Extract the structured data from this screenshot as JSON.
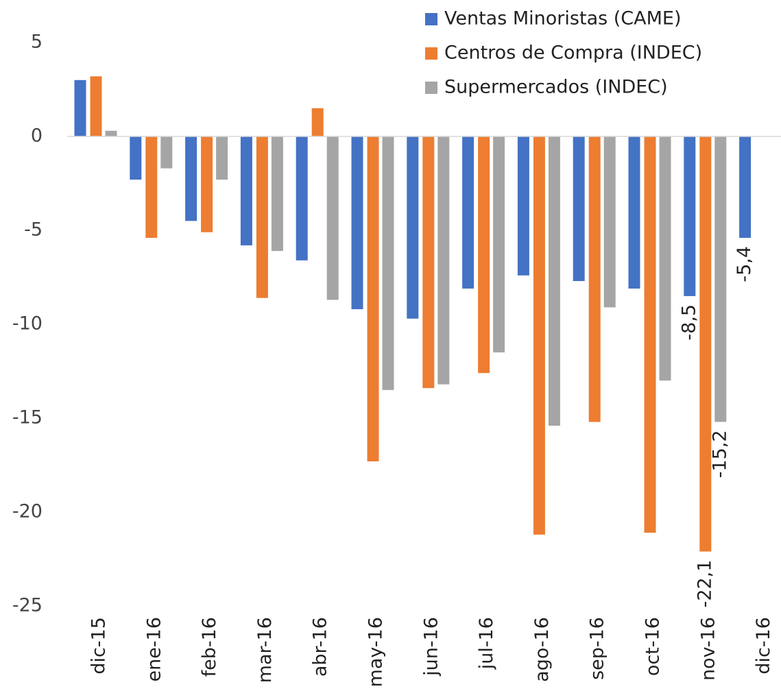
{
  "chart_data": {
    "type": "bar",
    "categories": [
      "dic-15",
      "ene-16",
      "feb-16",
      "mar-16",
      "abr-16",
      "may-16",
      "jun-16",
      "jul-16",
      "ago-16",
      "sep-16",
      "oct-16",
      "nov-16",
      "dic-16"
    ],
    "series": [
      {
        "name": "Ventas Minoristas (CAME)",
        "color": "#4472c4",
        "values": [
          3.0,
          -2.3,
          -4.5,
          -5.8,
          -6.6,
          -9.2,
          -9.7,
          -8.1,
          -7.4,
          -7.7,
          -8.1,
          -8.5,
          -5.4
        ],
        "value_labels": [
          null,
          null,
          null,
          null,
          null,
          null,
          null,
          null,
          null,
          null,
          null,
          "-8,5",
          "-5,4"
        ]
      },
      {
        "name": "Centros de Compra (INDEC)",
        "color": "#ed7d31",
        "values": [
          3.2,
          -5.4,
          -5.1,
          -8.6,
          1.5,
          -17.3,
          -13.4,
          -12.6,
          -21.2,
          -15.2,
          -21.1,
          -22.1,
          null
        ],
        "value_labels": [
          null,
          null,
          null,
          null,
          null,
          null,
          null,
          null,
          null,
          null,
          null,
          "-22,1",
          null
        ]
      },
      {
        "name": "Supermercados (INDEC)",
        "color": "#a5a5a5",
        "values": [
          0.3,
          -1.7,
          -2.3,
          -6.1,
          -8.7,
          -13.5,
          -13.2,
          -11.5,
          -15.4,
          -9.1,
          -13.0,
          -15.2,
          null
        ],
        "value_labels": [
          null,
          null,
          null,
          null,
          null,
          null,
          null,
          null,
          null,
          null,
          null,
          "-15,2",
          null
        ]
      }
    ],
    "ylim": [
      -25,
      5
    ],
    "yticks": [
      5,
      0,
      -5,
      -10,
      -15,
      -20,
      -25
    ],
    "grid": false,
    "legend": "upper right"
  }
}
